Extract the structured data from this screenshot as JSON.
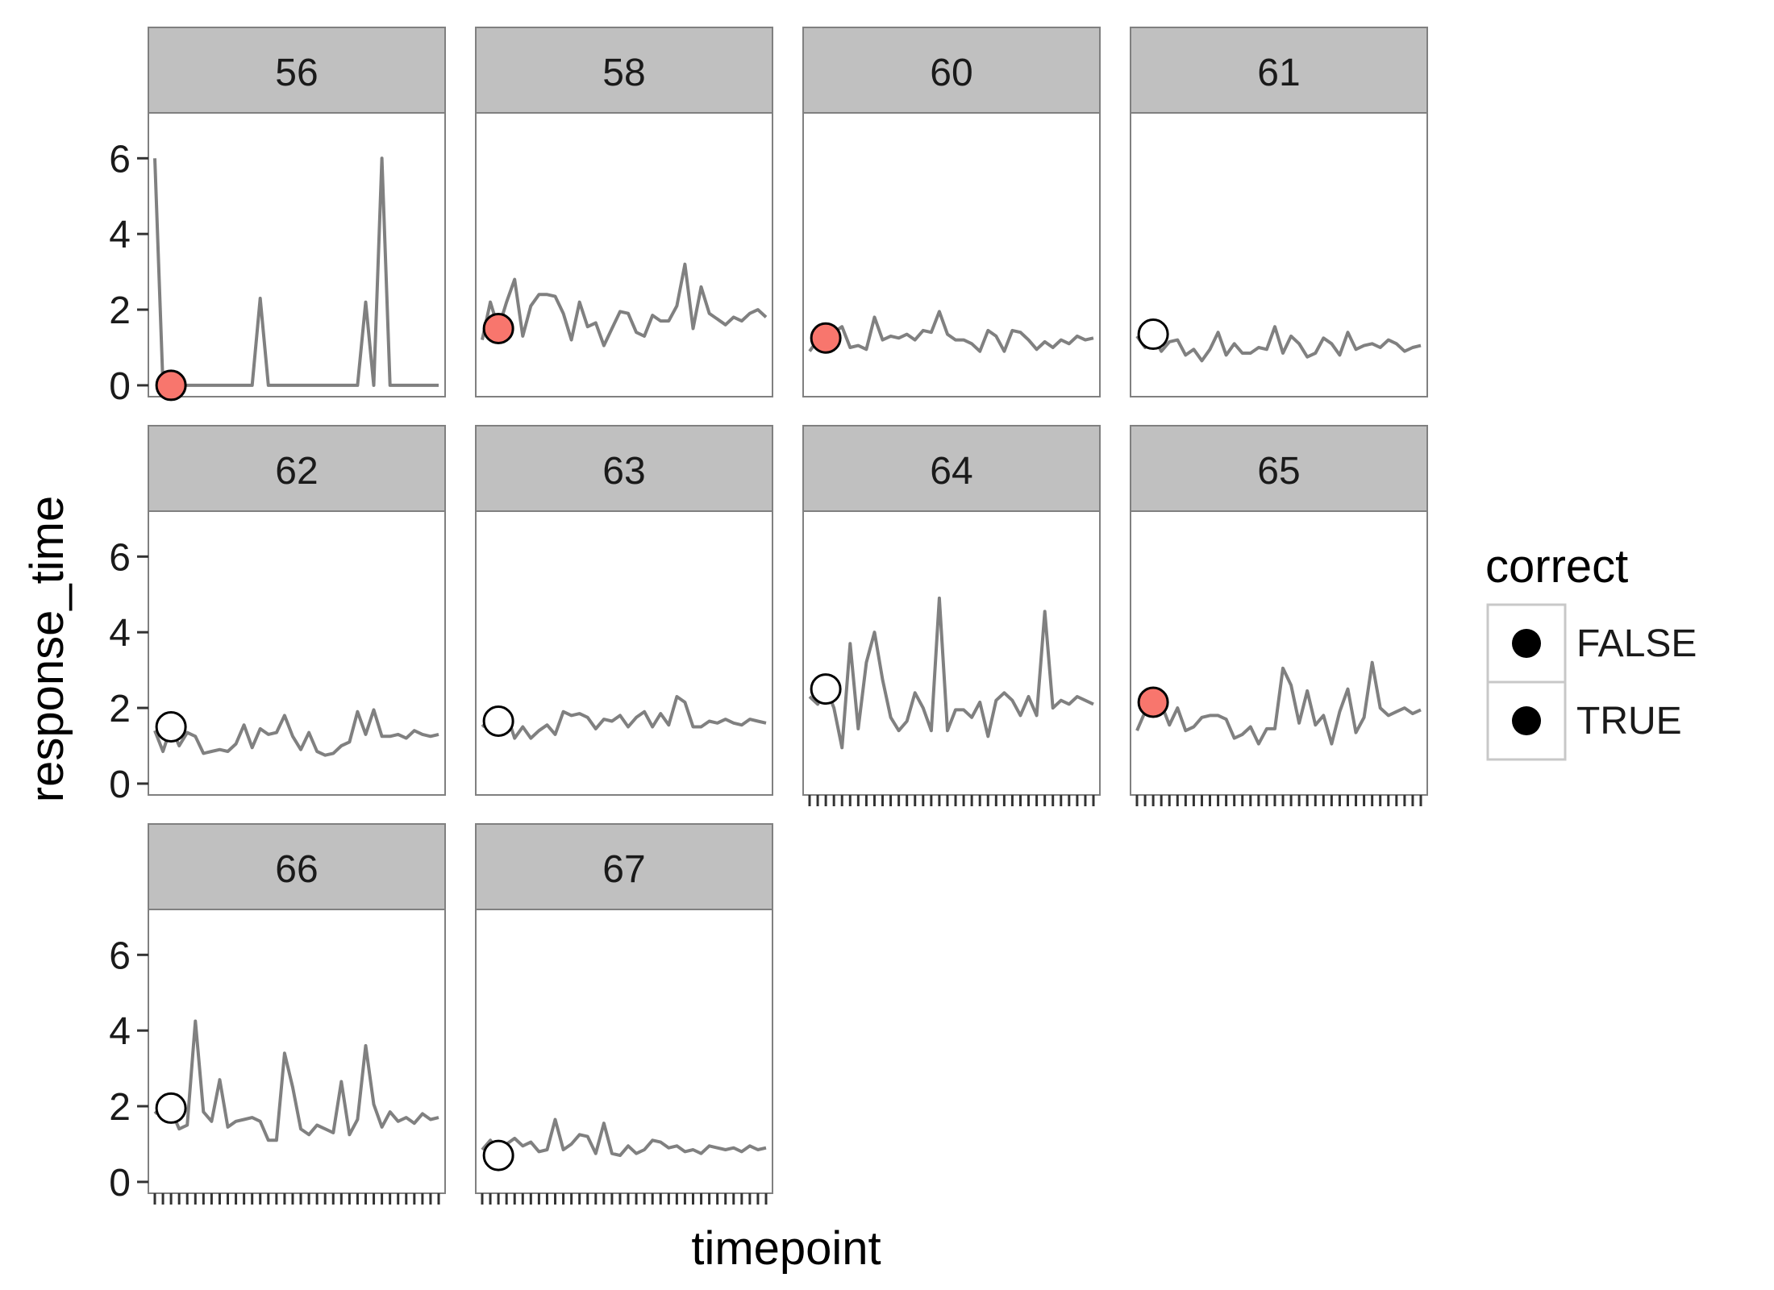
{
  "chart_data": {
    "type": "line",
    "xlabel": "timepoint",
    "ylabel": "response_time",
    "ylim": [
      -0.3,
      7.2
    ],
    "yticks": [
      0,
      2,
      4,
      6
    ],
    "n_timepoints": 36,
    "line_color": "#808080",
    "strip_color": "#c0c0c0",
    "legend": {
      "title": "correct",
      "placement": "right",
      "entries": [
        {
          "label": "FALSE",
          "fill": "#f8766d"
        },
        {
          "label": "TRUE",
          "fill": "#ffffff"
        }
      ]
    },
    "panels": [
      {
        "label": "56",
        "first_point": {
          "x": 3,
          "y": 0.0,
          "correct": "FALSE"
        },
        "values": [
          6.0,
          0.0,
          0.0,
          0.0,
          0.0,
          0.0,
          0.0,
          0.0,
          0.0,
          0.0,
          0.0,
          0.0,
          0.0,
          2.3,
          0.0,
          0.0,
          0.0,
          0.0,
          0.0,
          0.0,
          0.0,
          0.0,
          0.0,
          0.0,
          0.0,
          0.0,
          2.2,
          0.0,
          6.0,
          0.0,
          0.0,
          0.0,
          0.0,
          0.0,
          0.0,
          0.0
        ]
      },
      {
        "label": "58",
        "first_point": {
          "x": 3,
          "y": 1.5,
          "correct": "FALSE"
        },
        "values": [
          1.2,
          2.2,
          1.5,
          2.2,
          2.8,
          1.3,
          2.1,
          2.4,
          2.4,
          2.35,
          1.9,
          1.2,
          2.2,
          1.55,
          1.65,
          1.05,
          1.5,
          1.95,
          1.9,
          1.4,
          1.3,
          1.85,
          1.7,
          1.7,
          2.1,
          3.2,
          1.5,
          2.6,
          1.9,
          1.75,
          1.6,
          1.8,
          1.7,
          1.9,
          2.0,
          1.8
        ]
      },
      {
        "label": "60",
        "first_point": {
          "x": 3,
          "y": 1.25,
          "correct": "FALSE"
        },
        "values": [
          0.9,
          1.2,
          1.3,
          1.4,
          1.55,
          1.0,
          1.05,
          0.95,
          1.8,
          1.2,
          1.3,
          1.25,
          1.35,
          1.2,
          1.45,
          1.4,
          1.95,
          1.35,
          1.2,
          1.2,
          1.1,
          0.9,
          1.45,
          1.3,
          0.9,
          1.45,
          1.4,
          1.2,
          0.95,
          1.15,
          1.0,
          1.2,
          1.1,
          1.3,
          1.2,
          1.25
        ]
      },
      {
        "label": "61",
        "first_point": {
          "x": 3,
          "y": 1.35,
          "correct": "TRUE"
        },
        "values": [
          1.3,
          1.0,
          1.3,
          0.9,
          1.15,
          1.2,
          0.8,
          0.95,
          0.65,
          0.95,
          1.4,
          0.8,
          1.1,
          0.85,
          0.85,
          1.0,
          0.95,
          1.55,
          0.85,
          1.3,
          1.1,
          0.75,
          0.85,
          1.25,
          1.1,
          0.8,
          1.4,
          0.95,
          1.05,
          1.1,
          1.0,
          1.2,
          1.1,
          0.9,
          1.0,
          1.05
        ]
      },
      {
        "label": "62",
        "first_point": {
          "x": 3,
          "y": 1.5,
          "correct": "TRUE"
        },
        "values": [
          1.4,
          0.85,
          1.5,
          1.0,
          1.35,
          1.25,
          0.8,
          0.85,
          0.9,
          0.85,
          1.05,
          1.55,
          0.95,
          1.45,
          1.3,
          1.35,
          1.8,
          1.25,
          0.9,
          1.35,
          0.85,
          0.75,
          0.8,
          1.0,
          1.1,
          1.9,
          1.3,
          1.95,
          1.25,
          1.25,
          1.3,
          1.2,
          1.4,
          1.3,
          1.25,
          1.3
        ]
      },
      {
        "label": "63",
        "first_point": {
          "x": 3,
          "y": 1.65,
          "correct": "TRUE"
        },
        "values": [
          1.5,
          1.7,
          1.65,
          1.85,
          1.2,
          1.5,
          1.2,
          1.4,
          1.55,
          1.3,
          1.9,
          1.8,
          1.85,
          1.75,
          1.45,
          1.7,
          1.65,
          1.8,
          1.5,
          1.75,
          1.9,
          1.5,
          1.85,
          1.55,
          2.3,
          2.15,
          1.5,
          1.5,
          1.65,
          1.6,
          1.7,
          1.6,
          1.55,
          1.7,
          1.65,
          1.6
        ]
      },
      {
        "label": "64",
        "first_point": {
          "x": 3,
          "y": 2.5,
          "correct": "TRUE"
        },
        "values": [
          2.3,
          2.1,
          2.55,
          2.0,
          0.95,
          3.7,
          1.45,
          3.2,
          4.0,
          2.75,
          1.75,
          1.4,
          1.65,
          2.4,
          2.0,
          1.4,
          4.9,
          1.4,
          1.95,
          1.95,
          1.75,
          2.15,
          1.25,
          2.2,
          2.4,
          2.2,
          1.8,
          2.3,
          1.8,
          4.55,
          2.0,
          2.2,
          2.1,
          2.3,
          2.2,
          2.1
        ]
      },
      {
        "label": "65",
        "first_point": {
          "x": 3,
          "y": 2.15,
          "correct": "FALSE"
        },
        "values": [
          1.4,
          1.9,
          2.2,
          2.1,
          1.55,
          2.0,
          1.4,
          1.5,
          1.75,
          1.8,
          1.8,
          1.7,
          1.2,
          1.3,
          1.5,
          1.05,
          1.45,
          1.45,
          3.05,
          2.6,
          1.6,
          2.45,
          1.55,
          1.8,
          1.05,
          1.9,
          2.5,
          1.35,
          1.75,
          3.2,
          2.0,
          1.8,
          1.9,
          2.0,
          1.85,
          1.95
        ]
      },
      {
        "label": "66",
        "first_point": {
          "x": 3,
          "y": 1.95,
          "correct": "TRUE"
        },
        "values": [
          1.8,
          2.0,
          1.9,
          1.4,
          1.5,
          4.25,
          1.85,
          1.6,
          2.7,
          1.45,
          1.6,
          1.65,
          1.7,
          1.6,
          1.1,
          1.1,
          3.4,
          2.5,
          1.4,
          1.25,
          1.5,
          1.4,
          1.3,
          2.65,
          1.25,
          1.65,
          3.6,
          2.05,
          1.45,
          1.85,
          1.6,
          1.7,
          1.55,
          1.8,
          1.65,
          1.7
        ]
      },
      {
        "label": "67",
        "first_point": {
          "x": 3,
          "y": 0.7,
          "correct": "TRUE"
        },
        "values": [
          0.85,
          1.1,
          0.8,
          1.0,
          1.15,
          0.95,
          1.05,
          0.8,
          0.85,
          1.65,
          0.85,
          1.0,
          1.25,
          1.2,
          0.75,
          1.55,
          0.75,
          0.7,
          0.95,
          0.75,
          0.85,
          1.1,
          1.05,
          0.9,
          0.95,
          0.8,
          0.85,
          0.75,
          0.95,
          0.9,
          0.85,
          0.9,
          0.8,
          0.95,
          0.85,
          0.9
        ]
      }
    ]
  }
}
